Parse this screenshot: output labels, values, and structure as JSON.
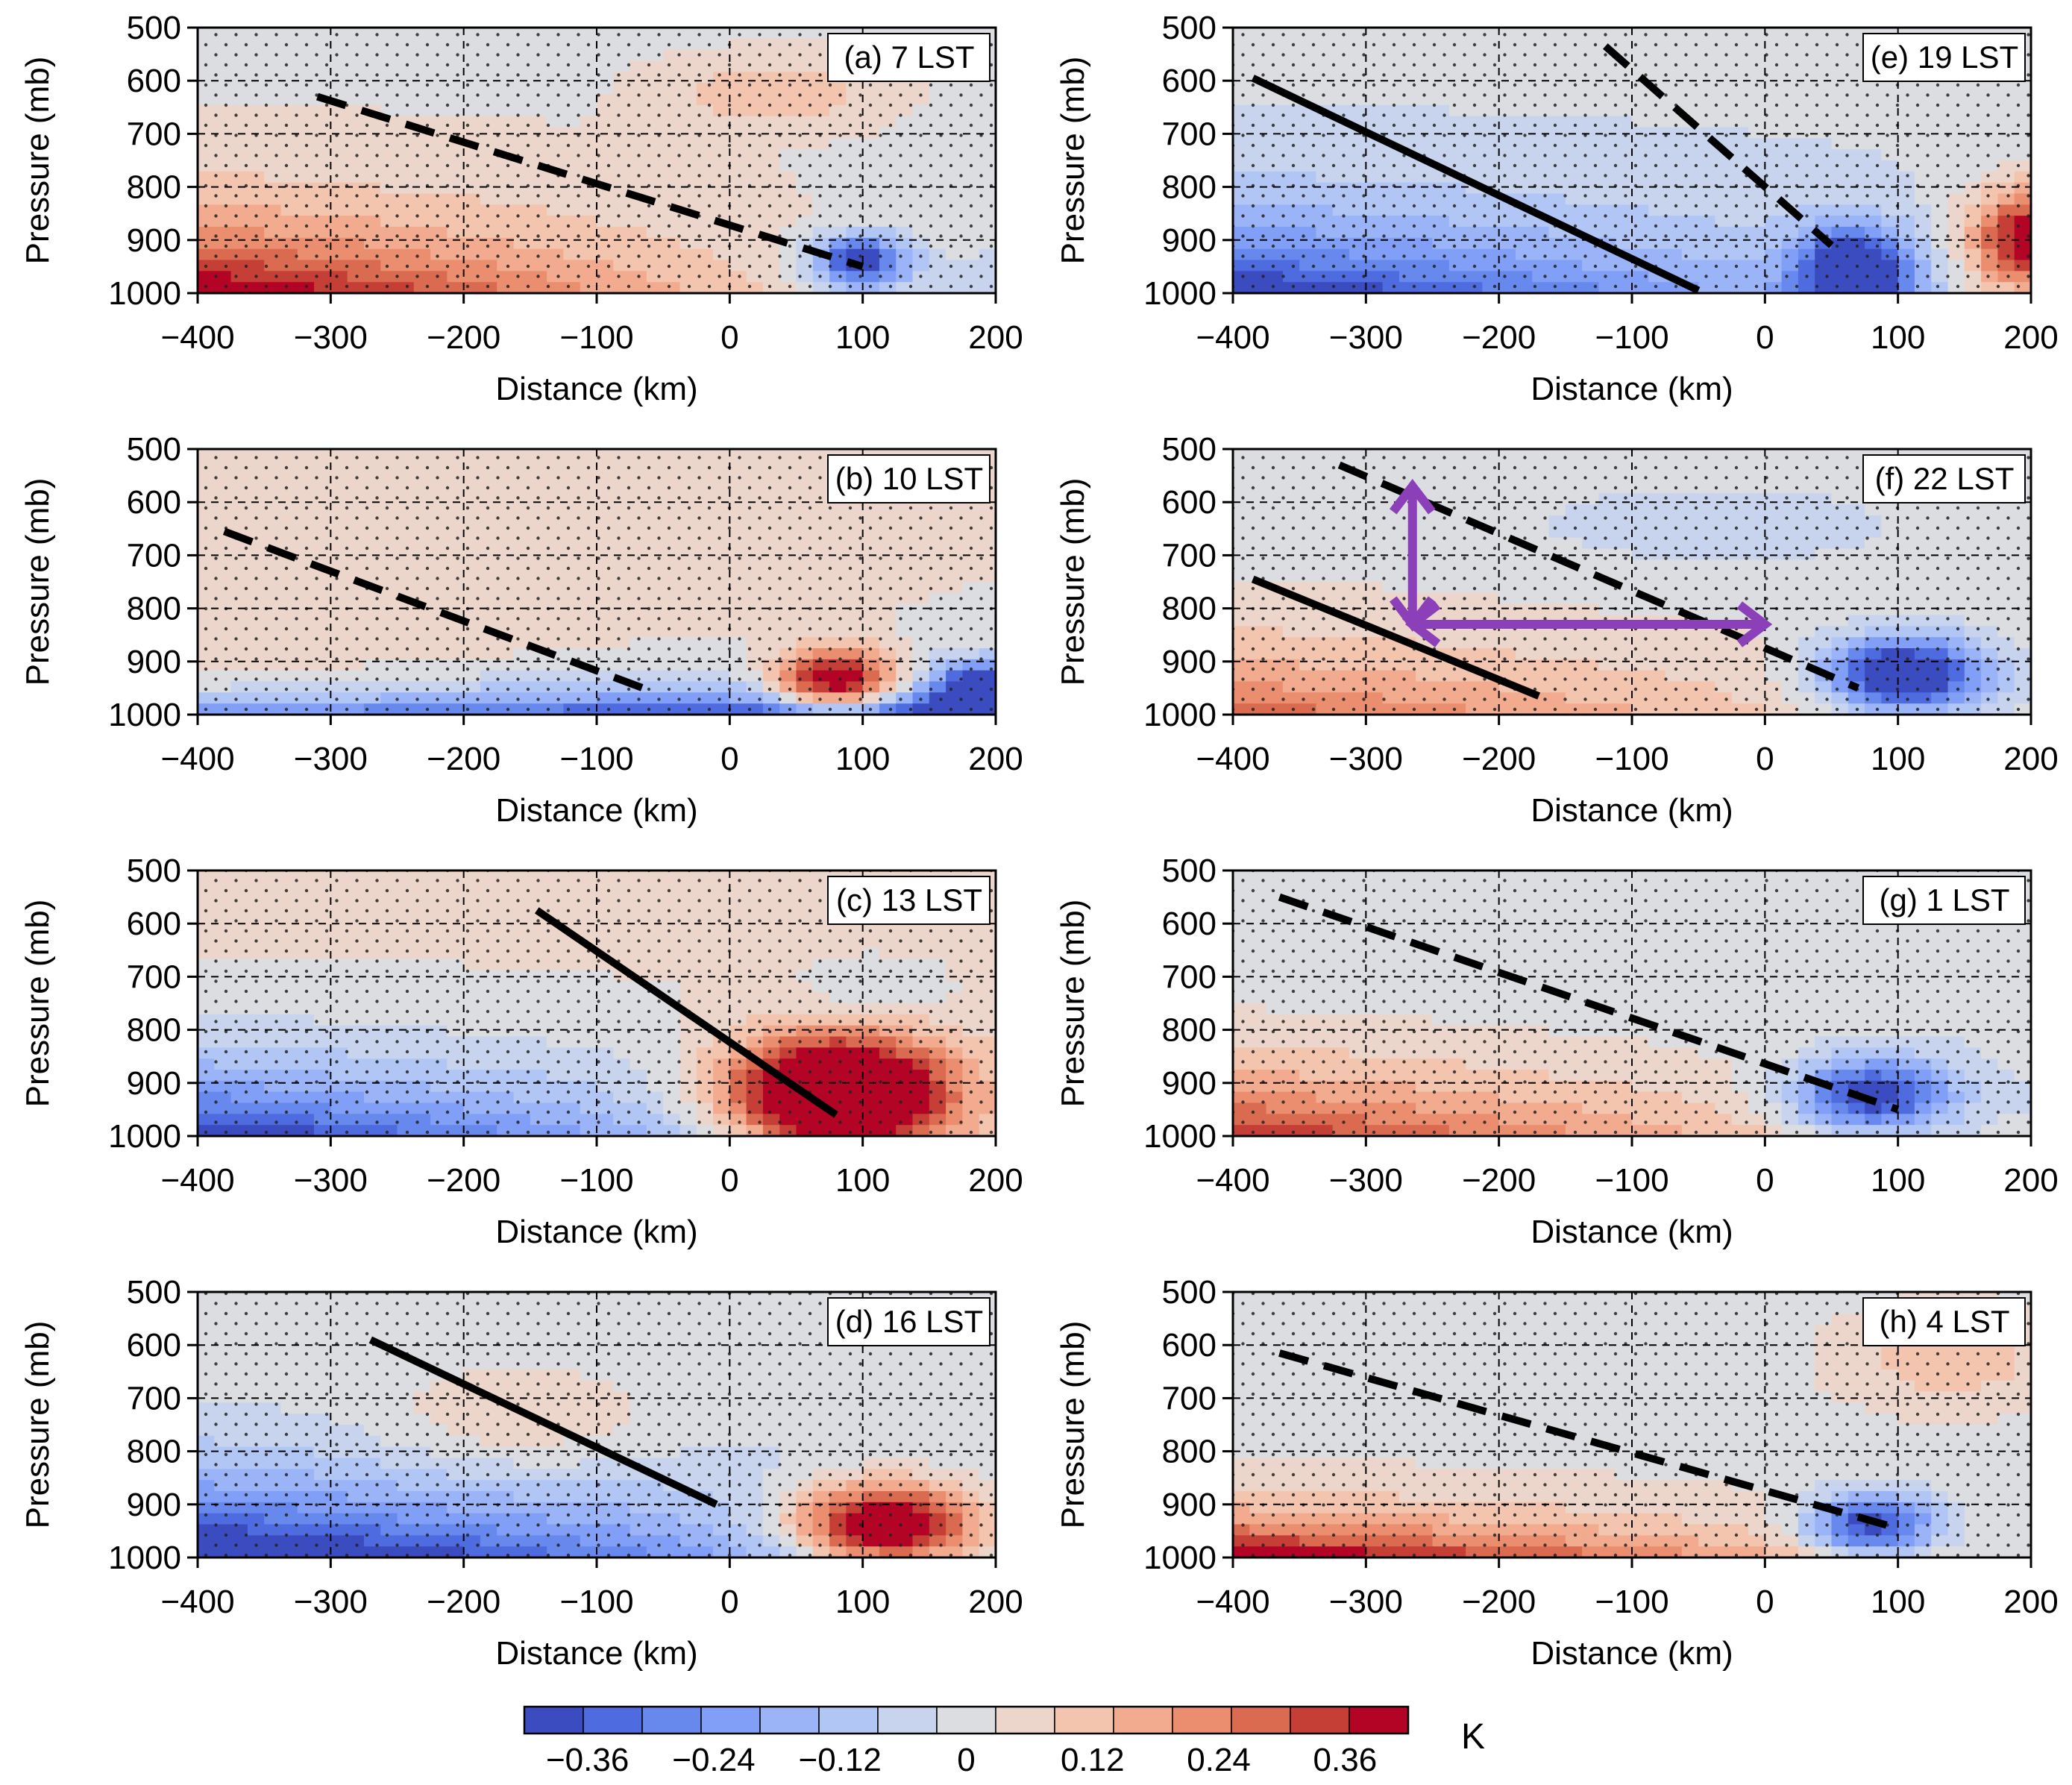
{
  "figure": {
    "description_axes": "Pressure (mb) vs Distance (km) cross sections",
    "colorbar": {
      "unit": "K",
      "ticks": [
        "−0.36",
        "−0.24",
        "−0.12",
        "0",
        "0.12",
        "0.24",
        "0.36"
      ],
      "tick_values": [
        -0.36,
        -0.24,
        -0.12,
        0,
        0.12,
        0.24,
        0.36
      ],
      "range": [
        -0.42,
        0.42
      ],
      "n_levels": 15,
      "colors": [
        "#3a4cc0",
        "#4f6be0",
        "#6789ee",
        "#819ff6",
        "#9bb4f8",
        "#b2c6f5",
        "#c8d4ee",
        "#dcdde1",
        "#ecd6cb",
        "#f3c4ae",
        "#f2ab8e",
        "#ea8e6f",
        "#da6a50",
        "#c53f36",
        "#b40426"
      ]
    }
  },
  "chart_data": [
    {
      "type": "heatmap",
      "title": "(a) 7 LST",
      "xlabel": "Distance (km)",
      "ylabel": "Pressure (mb)",
      "xlim": [
        -400,
        200
      ],
      "ylim": [
        1000,
        500
      ],
      "xticks": [
        "−400",
        "−300",
        "−200",
        "−100",
        "0",
        "100",
        "200"
      ],
      "yticks": [
        "500",
        "600",
        "700",
        "800",
        "900",
        "1000"
      ],
      "lines": [
        {
          "style": "dashed",
          "points": [
            [
              -310,
              630
            ],
            [
              100,
              950
            ]
          ]
        }
      ],
      "arrows": []
    },
    {
      "type": "heatmap",
      "title": "(b) 10 LST",
      "xlabel": "Distance (km)",
      "ylabel": "Pressure (mb)",
      "xlim": [
        -400,
        200
      ],
      "ylim": [
        1000,
        500
      ],
      "xticks": [
        "−400",
        "−300",
        "−200",
        "−100",
        "0",
        "100",
        "200"
      ],
      "yticks": [
        "500",
        "600",
        "700",
        "800",
        "900",
        "1000"
      ],
      "lines": [
        {
          "style": "dashed",
          "points": [
            [
              -380,
              655
            ],
            [
              -60,
              955
            ]
          ]
        }
      ],
      "arrows": []
    },
    {
      "type": "heatmap",
      "title": "(c) 13 LST",
      "xlabel": "Distance (km)",
      "ylabel": "Pressure (mb)",
      "xlim": [
        -400,
        200
      ],
      "ylim": [
        1000,
        500
      ],
      "xticks": [
        "−400",
        "−300",
        "−200",
        "−100",
        "0",
        "100",
        "200"
      ],
      "yticks": [
        "500",
        "600",
        "700",
        "800",
        "900",
        "1000"
      ],
      "lines": [
        {
          "style": "solid",
          "points": [
            [
              -145,
              575
            ],
            [
              80,
              960
            ]
          ]
        }
      ],
      "arrows": []
    },
    {
      "type": "heatmap",
      "title": "(d) 16 LST",
      "xlabel": "Distance (km)",
      "ylabel": "Pressure (mb)",
      "xlim": [
        -400,
        200
      ],
      "ylim": [
        1000,
        500
      ],
      "xticks": [
        "−400",
        "−300",
        "−200",
        "−100",
        "0",
        "100",
        "200"
      ],
      "yticks": [
        "500",
        "600",
        "700",
        "800",
        "900",
        "1000"
      ],
      "lines": [
        {
          "style": "solid",
          "points": [
            [
              -270,
              590
            ],
            [
              -10,
              900
            ]
          ]
        }
      ],
      "arrows": []
    },
    {
      "type": "heatmap",
      "title": "(e) 19 LST",
      "xlabel": "Distance (km)",
      "ylabel": "Pressure (mb)",
      "xlim": [
        -400,
        200
      ],
      "ylim": [
        1000,
        500
      ],
      "xticks": [
        "−400",
        "−300",
        "−200",
        "−100",
        "0",
        "100",
        "200"
      ],
      "yticks": [
        "500",
        "600",
        "700",
        "800",
        "900",
        "1000"
      ],
      "lines": [
        {
          "style": "solid",
          "points": [
            [
              -385,
              595
            ],
            [
              -50,
              995
            ]
          ]
        },
        {
          "style": "dashed",
          "points": [
            [
              -120,
              535
            ],
            [
              50,
              910
            ]
          ]
        }
      ],
      "arrows": []
    },
    {
      "type": "heatmap",
      "title": "(f) 22 LST",
      "xlabel": "Distance (km)",
      "ylabel": "Pressure (mb)",
      "xlim": [
        -400,
        200
      ],
      "ylim": [
        1000,
        500
      ],
      "xticks": [
        "−400",
        "−300",
        "−200",
        "−100",
        "0",
        "100",
        "200"
      ],
      "yticks": [
        "500",
        "600",
        "700",
        "800",
        "900",
        "1000"
      ],
      "lines": [
        {
          "style": "solid",
          "points": [
            [
              -385,
              745
            ],
            [
              -170,
              965
            ]
          ]
        },
        {
          "style": "dashed",
          "points": [
            [
              -320,
              530
            ],
            [
              70,
              950
            ]
          ]
        }
      ],
      "arrows": [
        {
          "color": "#8b3fb8",
          "from": [
            -265,
            830
          ],
          "to": [
            -265,
            570
          ],
          "double": true
        },
        {
          "color": "#8b3fb8",
          "from": [
            -265,
            830
          ],
          "to": [
            0,
            830
          ],
          "double": true
        }
      ]
    },
    {
      "type": "heatmap",
      "title": "(g) 1 LST",
      "xlabel": "Distance (km)",
      "ylabel": "Pressure (mb)",
      "xlim": [
        -400,
        200
      ],
      "ylim": [
        1000,
        500
      ],
      "xticks": [
        "−400",
        "−300",
        "−200",
        "−100",
        "0",
        "100",
        "200"
      ],
      "yticks": [
        "500",
        "600",
        "700",
        "800",
        "900",
        "1000"
      ],
      "lines": [
        {
          "style": "dashed",
          "points": [
            [
              -365,
              550
            ],
            [
              100,
              950
            ]
          ]
        }
      ],
      "arrows": []
    },
    {
      "type": "heatmap",
      "title": "(h) 4 LST",
      "xlabel": "Distance (km)",
      "ylabel": "Pressure (mb)",
      "xlim": [
        -400,
        200
      ],
      "ylim": [
        1000,
        500
      ],
      "xticks": [
        "−400",
        "−300",
        "−200",
        "−100",
        "0",
        "100",
        "200"
      ],
      "yticks": [
        "500",
        "600",
        "700",
        "800",
        "900",
        "1000"
      ],
      "lines": [
        {
          "style": "dashed",
          "points": [
            [
              -365,
              615
            ],
            [
              100,
              945
            ]
          ]
        }
      ],
      "arrows": []
    }
  ]
}
